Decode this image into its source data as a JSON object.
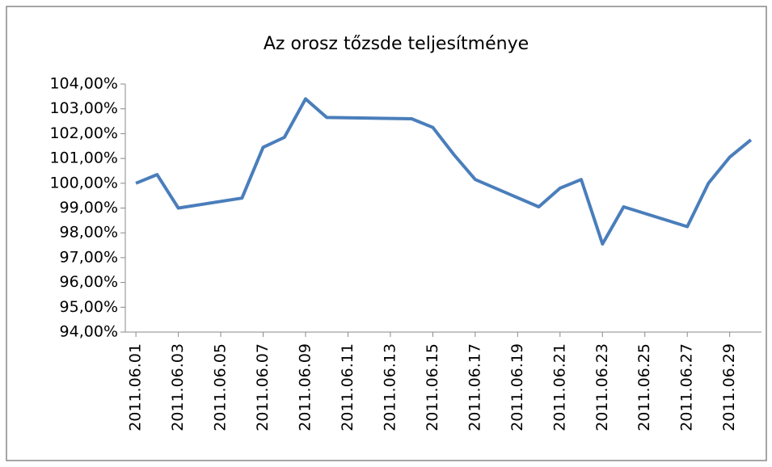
{
  "chart_data": {
    "type": "line",
    "title": "Az orosz tőzsde teljesítménye",
    "x": [
      "2011.06.01",
      "2011.06.02",
      "2011.06.03",
      "2011.06.06",
      "2011.06.07",
      "2011.06.08",
      "2011.06.09",
      "2011.06.10",
      "2011.06.14",
      "2011.06.15",
      "2011.06.16",
      "2011.06.17",
      "2011.06.20",
      "2011.06.21",
      "2011.06.22",
      "2011.06.23",
      "2011.06.24",
      "2011.06.27",
      "2011.06.28",
      "2011.06.29",
      "2011.06.30"
    ],
    "series": [
      {
        "color": "#4a7ebb",
        "values": [
          100.0,
          100.35,
          99.0,
          99.4,
          101.45,
          101.85,
          103.4,
          102.65,
          102.6,
          102.25,
          101.15,
          100.15,
          99.05,
          99.8,
          100.15,
          97.55,
          99.05,
          98.25,
          100.0,
          101.05,
          101.75
        ]
      }
    ],
    "xticks": [
      "2011.06.01",
      "2011.06.03",
      "2011.06.05",
      "2011.06.07",
      "2011.06.09",
      "2011.06.11",
      "2011.06.13",
      "2011.06.15",
      "2011.06.17",
      "2011.06.19",
      "2011.06.21",
      "2011.06.23",
      "2011.06.25",
      "2011.06.27",
      "2011.06.29"
    ],
    "ylim": [
      94,
      104
    ],
    "yticks": [
      {
        "value": 94,
        "label": "94,00%"
      },
      {
        "value": 95,
        "label": "95,00%"
      },
      {
        "value": 96,
        "label": "96,00%"
      },
      {
        "value": 97,
        "label": "97,00%"
      },
      {
        "value": 98,
        "label": "98,00%"
      },
      {
        "value": 99,
        "label": "99,00%"
      },
      {
        "value": 100,
        "label": "100,00%"
      },
      {
        "value": 101,
        "label": "101,00%"
      },
      {
        "value": 102,
        "label": "102,00%"
      },
      {
        "value": 103,
        "label": "103,00%"
      },
      {
        "value": 104,
        "label": "104,00%"
      }
    ],
    "grid": false
  }
}
